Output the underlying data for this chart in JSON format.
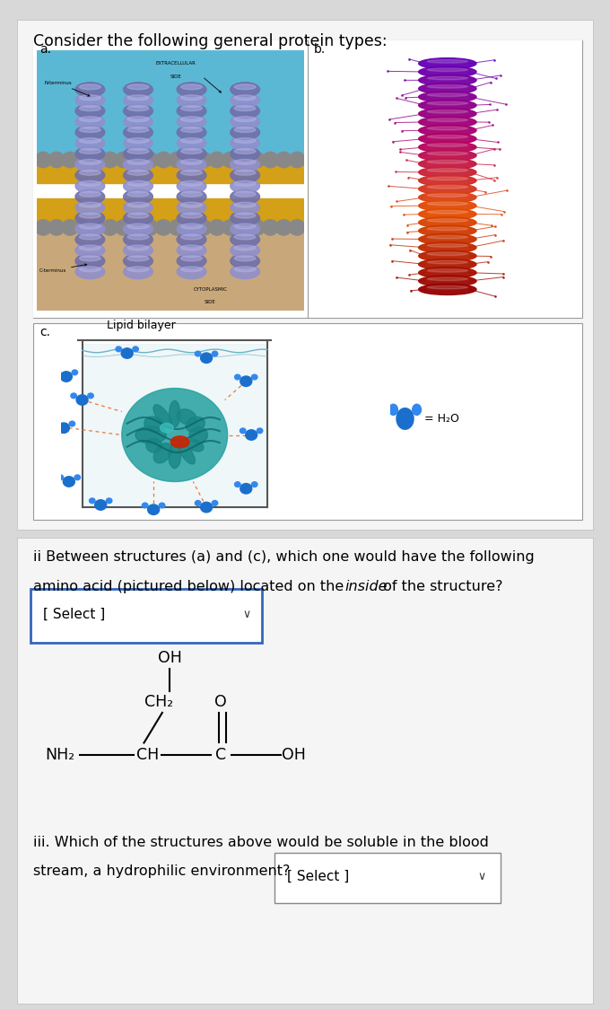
{
  "title": "Consider the following general protein types:",
  "title_fontsize": 12.5,
  "bg_color": "#d8d8d8",
  "top_card_bg": "#f2f2f2",
  "bottom_card_bg": "#f5f5f5",
  "section1_label_a": "a.",
  "section1_label_b": "b.",
  "section1_label_c": "c.",
  "lipid_bilayer_label": "Lipid bilayer",
  "h2o_label": "= H₂O",
  "question_ii_line1": "ii Between structures (a) and (c), which one would have the following",
  "question_ii_line2": "amino acid (pictured below) located on the ​inside​ of the structure?",
  "select_label": "[ Select ]",
  "question_iii_line1": "iii. Which of the structures above would be soluble in the blood",
  "question_iii_line2": "stream, a hydrophilic environment?",
  "select_label2": "[ Select ]",
  "inside_italic": "inside"
}
